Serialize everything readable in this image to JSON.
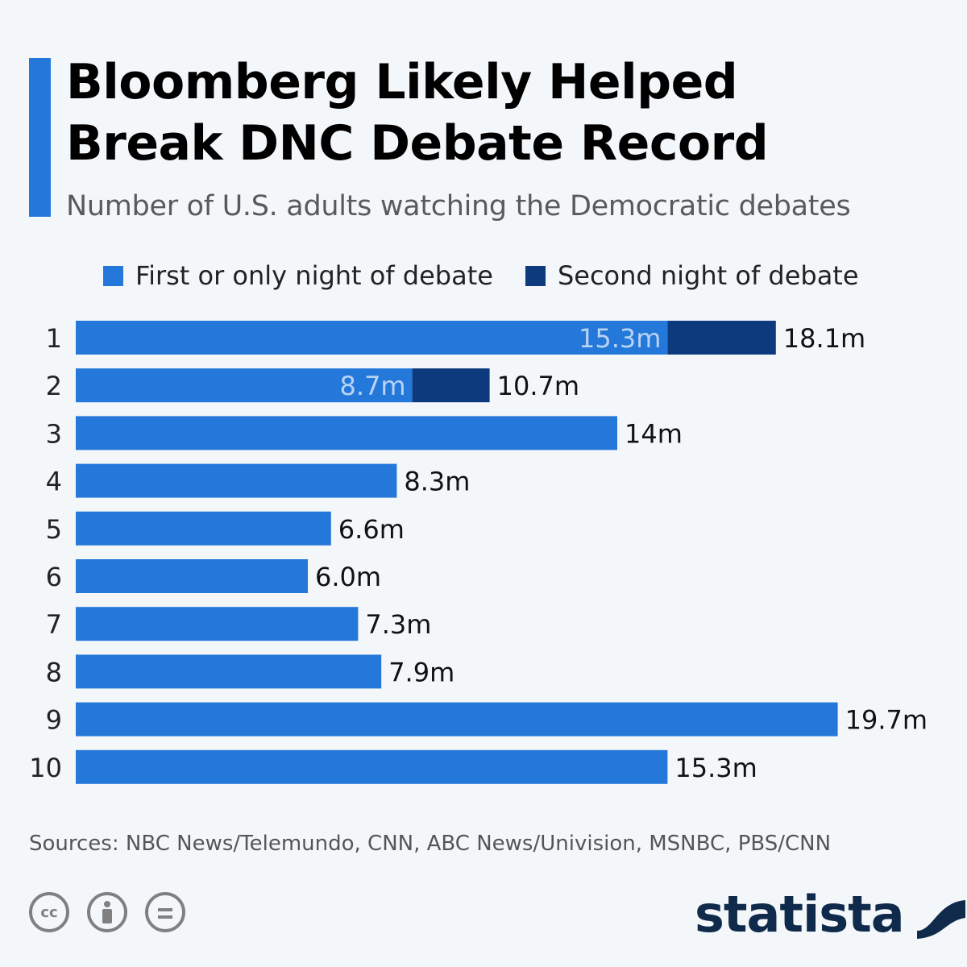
{
  "header": {
    "title_line1": "Bloomberg Likely Helped",
    "title_line2": "Break DNC Debate Record",
    "subtitle": "Number of U.S. adults watching the Democratic debates"
  },
  "legend": {
    "first_label": "First or only night of debate",
    "second_label": "Second night of debate"
  },
  "colors": {
    "accent": "#2478d9",
    "first_night": "#2478d9",
    "second_night": "#0c3a7d",
    "brand": "#0f2a4a"
  },
  "chart_data": {
    "type": "bar",
    "orientation": "horizontal",
    "stacked": true,
    "categories": [
      "1",
      "2",
      "3",
      "4",
      "5",
      "6",
      "7",
      "8",
      "9",
      "10"
    ],
    "series": [
      {
        "name": "First or only night of debate",
        "values": [
          15.3,
          8.7,
          14,
          8.3,
          6.6,
          6.0,
          7.3,
          7.9,
          19.7,
          15.3
        ]
      },
      {
        "name": "Second night of debate",
        "values": [
          2.8,
          2.0,
          0,
          0,
          0,
          0,
          0,
          0,
          0,
          0
        ]
      }
    ],
    "inner_labels": [
      "15.3m",
      "8.7m",
      "",
      "",
      "",
      "",
      "",
      "",
      "",
      ""
    ],
    "total_labels": [
      "18.1m",
      "10.7m",
      "14m",
      "8.3m",
      "6.6m",
      "6.0m",
      "7.3m",
      "7.9m",
      "19.7m",
      "15.3m"
    ],
    "xlim": [
      0,
      20
    ],
    "grid": false,
    "legend_position": "top"
  },
  "footer": {
    "source": "Sources: NBC News/Telemundo, CNN, ABC News/Univision, MSNBC, PBS/CNN",
    "cc_text": "cc",
    "brand": "statista"
  }
}
